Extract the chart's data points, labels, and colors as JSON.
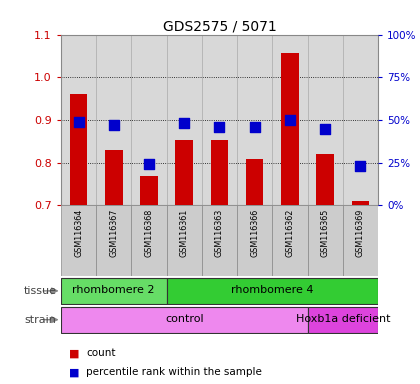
{
  "title": "GDS2575 / 5071",
  "samples": [
    "GSM116364",
    "GSM116367",
    "GSM116368",
    "GSM116361",
    "GSM116363",
    "GSM116366",
    "GSM116362",
    "GSM116365",
    "GSM116369"
  ],
  "count_values": [
    0.96,
    0.83,
    0.77,
    0.853,
    0.853,
    0.808,
    1.058,
    0.82,
    0.71
  ],
  "percentile_values": [
    49,
    47,
    24,
    48,
    46,
    46,
    50,
    45,
    23
  ],
  "ylim_left": [
    0.7,
    1.1
  ],
  "ylim_right": [
    0,
    100
  ],
  "yticks_left": [
    0.7,
    0.8,
    0.9,
    1.0,
    1.1
  ],
  "yticks_right": [
    0,
    25,
    50,
    75,
    100
  ],
  "ytick_labels_right": [
    "0%",
    "25%",
    "50%",
    "75%",
    "100%"
  ],
  "bar_color": "#cc0000",
  "dot_color": "#0000cc",
  "tissue_groups": [
    {
      "label": "rhombomere 2",
      "start": 0,
      "end": 3,
      "color": "#66dd66"
    },
    {
      "label": "rhombomere 4",
      "start": 3,
      "end": 9,
      "color": "#33cc33"
    }
  ],
  "strain_groups": [
    {
      "label": "control",
      "start": 0,
      "end": 7,
      "color": "#ee88ee"
    },
    {
      "label": "Hoxb1a deficient",
      "start": 7,
      "end": 9,
      "color": "#dd44dd"
    }
  ],
  "tissue_label": "tissue",
  "strain_label": "strain",
  "legend_count_label": "count",
  "legend_pct_label": "percentile rank within the sample",
  "bar_width": 0.5,
  "dot_size": 45,
  "background_color": "#ffffff",
  "plot_bg_color": "#d8d8d8",
  "sample_bg_color": "#cccccc",
  "title_color": "#000000",
  "left_tick_color": "#cc0000",
  "right_tick_color": "#0000cc",
  "label_color": "#444444"
}
